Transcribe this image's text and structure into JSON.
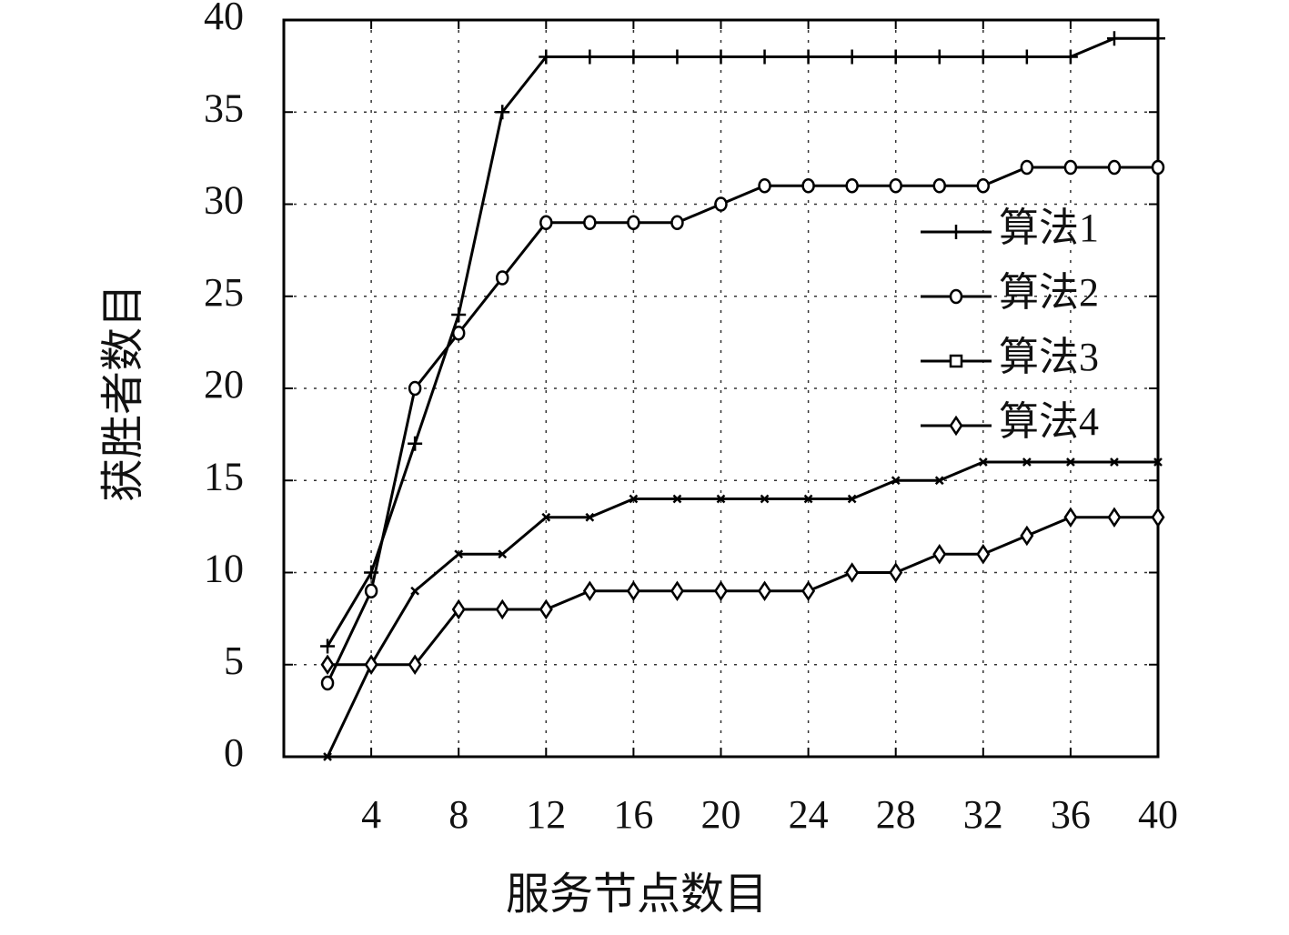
{
  "chart_data": {
    "type": "line",
    "xlabel": "服务节点数目",
    "ylabel": "获胜者数目",
    "x": [
      2,
      4,
      6,
      8,
      10,
      12,
      14,
      16,
      18,
      20,
      22,
      24,
      26,
      28,
      30,
      32,
      34,
      36,
      38,
      40
    ],
    "series": [
      {
        "name": "算法1",
        "color": "#000000",
        "marker": "plus",
        "values": [
          6,
          10,
          17,
          24,
          35,
          38,
          38,
          38,
          38,
          38,
          38,
          38,
          38,
          38,
          38,
          38,
          38,
          38,
          39,
          39
        ]
      },
      {
        "name": "算法2",
        "color": "#000000",
        "marker": "circle",
        "values": [
          4,
          9,
          20,
          23,
          26,
          29,
          29,
          29,
          29,
          30,
          31,
          31,
          31,
          31,
          31,
          31,
          32,
          32,
          32,
          32
        ]
      },
      {
        "name": "算法3",
        "color": "#000000",
        "marker": "x",
        "values": [
          0,
          5,
          9,
          11,
          11,
          13,
          13,
          14,
          14,
          14,
          14,
          14,
          14,
          15,
          15,
          16,
          16,
          16,
          16,
          16
        ]
      },
      {
        "name": "算法4",
        "color": "#000000",
        "marker": "diamond",
        "values": [
          5,
          5,
          5,
          8,
          8,
          8,
          9,
          9,
          9,
          9,
          9,
          9,
          10,
          10,
          11,
          11,
          12,
          13,
          13,
          13
        ]
      }
    ],
    "xlim": [
      0,
      40
    ],
    "xticks": [
      4,
      8,
      12,
      16,
      20,
      24,
      28,
      32,
      36,
      40
    ],
    "ylim": [
      0,
      40
    ],
    "yticks": [
      0,
      5,
      10,
      15,
      20,
      25,
      30,
      35,
      40
    ],
    "grid": true,
    "legend": "right"
  }
}
